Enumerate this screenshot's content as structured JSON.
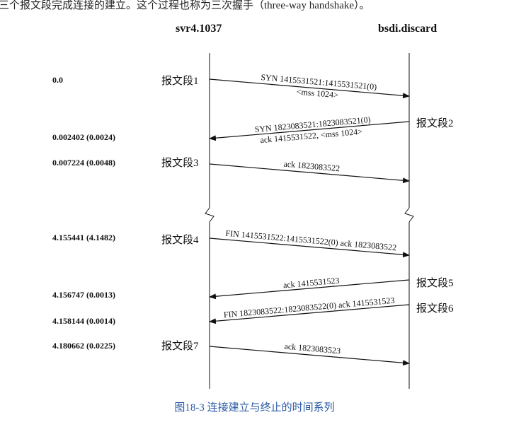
{
  "top_text": "三个报文段完成连接的建立。这个过程也称为三次握手（three-way handshake）。",
  "hosts": {
    "client": "svr4.1037",
    "server": "bsdi.discard"
  },
  "times": [
    "0.0",
    "0.002402 (0.0024)",
    "0.007224 (0.0048)",
    "4.155441 (4.1482)",
    "4.156747 (0.0013)",
    "4.158144 (0.0014)",
    "4.180662 (0.0225)"
  ],
  "segments": [
    "报文段1",
    "报文段2",
    "报文段3",
    "报文段4",
    "报文段5",
    "报文段6",
    "报文段7"
  ],
  "messages": [
    {
      "line1": "SYN 1415531521:1415531521(0)",
      "line2": "<mss 1024>"
    },
    {
      "line1": "SYN 1823083521:1823083521(0)",
      "line2": "ack 1415531522, <mss 1024>"
    },
    {
      "line1": "ack 1823083522"
    },
    {
      "line1": "FIN 1415531522:1415531522(0) ack 1823083522"
    },
    {
      "line1": "ack 1415531523"
    },
    {
      "line1": "FIN 1823083522:1823083522(0) ack 1415531523"
    },
    {
      "line1": "ack 1823083523"
    }
  ],
  "caption": "图18-3   连接建立与终止的时间系列",
  "colors": {
    "caption": "#2a5aa6",
    "line": "#111111"
  }
}
